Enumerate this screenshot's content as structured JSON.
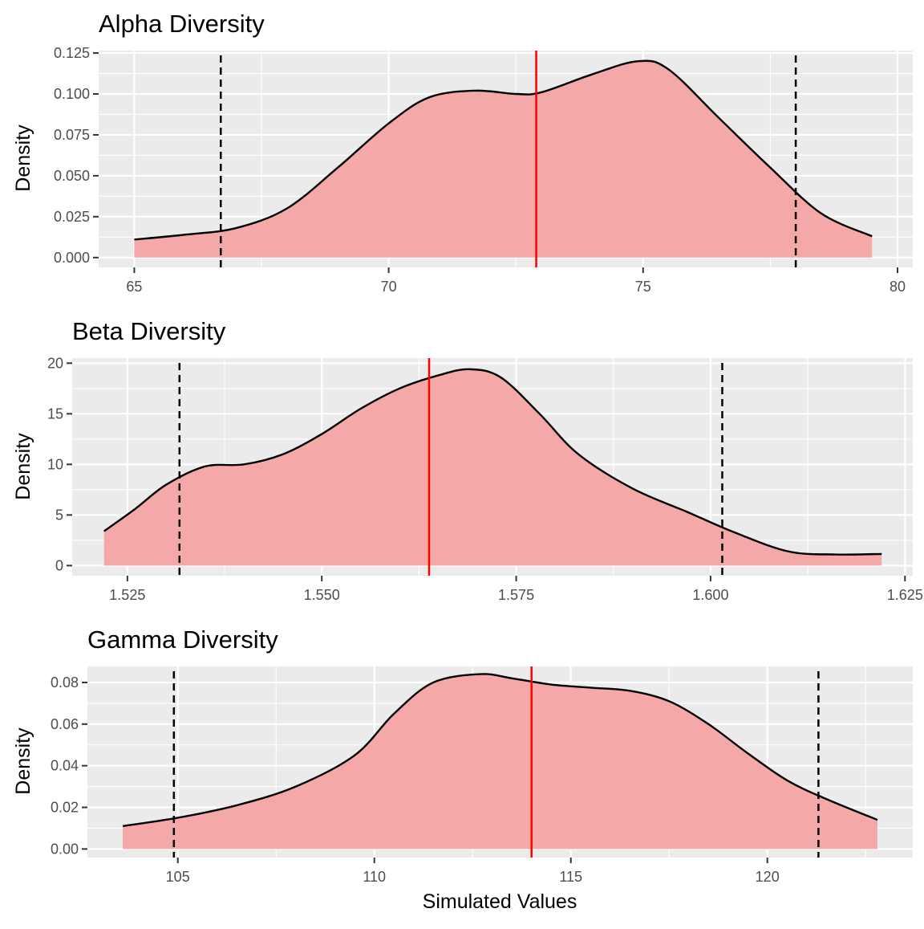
{
  "colors": {
    "panel_background": "#ebebeb",
    "grid_major": "#ffffff",
    "density_fill": "#f4a9a8",
    "density_line": "#000000",
    "mean_line": "#ff0000",
    "ci_line": "#000000",
    "tick": "#333333",
    "tick_label": "#4d4d4d"
  },
  "chart_data": [
    {
      "type": "area",
      "title": "Alpha Diversity",
      "xlabel": "",
      "ylabel": "Density",
      "xlim": [
        64.3,
        80.3
      ],
      "ylim": [
        -0.006,
        0.1265
      ],
      "x_ticks": [
        65,
        70,
        75,
        80
      ],
      "x_tick_labels": [
        "65",
        "70",
        "75",
        "80"
      ],
      "y_ticks": [
        0,
        0.025,
        0.05,
        0.075,
        0.1,
        0.125
      ],
      "y_tick_labels": [
        "0.000",
        "0.025",
        "0.050",
        "0.075",
        "0.100",
        "0.125"
      ],
      "grid": true,
      "series": [
        {
          "x": [
            65.0,
            66.0,
            67.0,
            68.0,
            69.0,
            70.0,
            70.8,
            71.7,
            72.5,
            73.0,
            74.0,
            74.9,
            75.5,
            76.5,
            77.5,
            78.5,
            79.5
          ],
          "y": [
            0.011,
            0.014,
            0.018,
            0.03,
            0.055,
            0.082,
            0.098,
            0.102,
            0.1,
            0.101,
            0.112,
            0.12,
            0.115,
            0.085,
            0.055,
            0.027,
            0.013
          ]
        }
      ],
      "mean": 72.9,
      "ci": [
        66.7,
        78.0
      ]
    },
    {
      "type": "area",
      "title": "Beta Diversity",
      "xlabel": "",
      "ylabel": "Density",
      "xlim": [
        1.5179,
        1.626
      ],
      "ylim": [
        -1.0,
        20.5
      ],
      "x_ticks": [
        1.525,
        1.55,
        1.575,
        1.6,
        1.625
      ],
      "x_tick_labels": [
        "1.525",
        "1.550",
        "1.575",
        "1.600",
        "1.625"
      ],
      "y_ticks": [
        0,
        5,
        10,
        15,
        20
      ],
      "y_tick_labels": [
        "0",
        "5",
        "10",
        "15",
        "20"
      ],
      "grid": true,
      "series": [
        {
          "x": [
            1.522,
            1.526,
            1.53,
            1.535,
            1.54,
            1.545,
            1.55,
            1.555,
            1.56,
            1.565,
            1.569,
            1.573,
            1.578,
            1.583,
            1.59,
            1.597,
            1.603,
            1.61,
            1.616,
            1.622
          ],
          "y": [
            3.4,
            5.6,
            8.0,
            9.8,
            10.0,
            11.0,
            13.0,
            15.5,
            17.5,
            18.8,
            19.4,
            18.6,
            15.0,
            11.0,
            7.6,
            5.3,
            3.3,
            1.4,
            1.1,
            1.15
          ]
        }
      ],
      "mean": 1.5638,
      "ci": [
        1.5317,
        1.6015
      ]
    },
    {
      "type": "area",
      "title": "Gamma Diversity",
      "xlabel": "Simulated Values",
      "ylabel": "Density",
      "xlim": [
        102.7,
        123.7
      ],
      "ylim": [
        -0.0041,
        0.0877
      ],
      "x_ticks": [
        105,
        110,
        115,
        120
      ],
      "x_tick_labels": [
        "105",
        "110",
        "115",
        "120"
      ],
      "y_ticks": [
        0,
        0.02,
        0.04,
        0.06,
        0.08
      ],
      "y_tick_labels": [
        "0.00",
        "0.02",
        "0.04",
        "0.06",
        "0.08"
      ],
      "grid": true,
      "series": [
        {
          "x": [
            103.6,
            105.0,
            106.5,
            108.0,
            109.5,
            110.5,
            111.5,
            112.7,
            113.5,
            114.5,
            115.5,
            116.5,
            117.5,
            118.5,
            119.5,
            120.5,
            121.5,
            122.8
          ],
          "y": [
            0.011,
            0.015,
            0.021,
            0.03,
            0.045,
            0.065,
            0.08,
            0.084,
            0.082,
            0.079,
            0.0775,
            0.076,
            0.071,
            0.06,
            0.046,
            0.033,
            0.024,
            0.014
          ]
        }
      ],
      "mean": 114.0,
      "ci": [
        104.9,
        121.3
      ]
    }
  ]
}
